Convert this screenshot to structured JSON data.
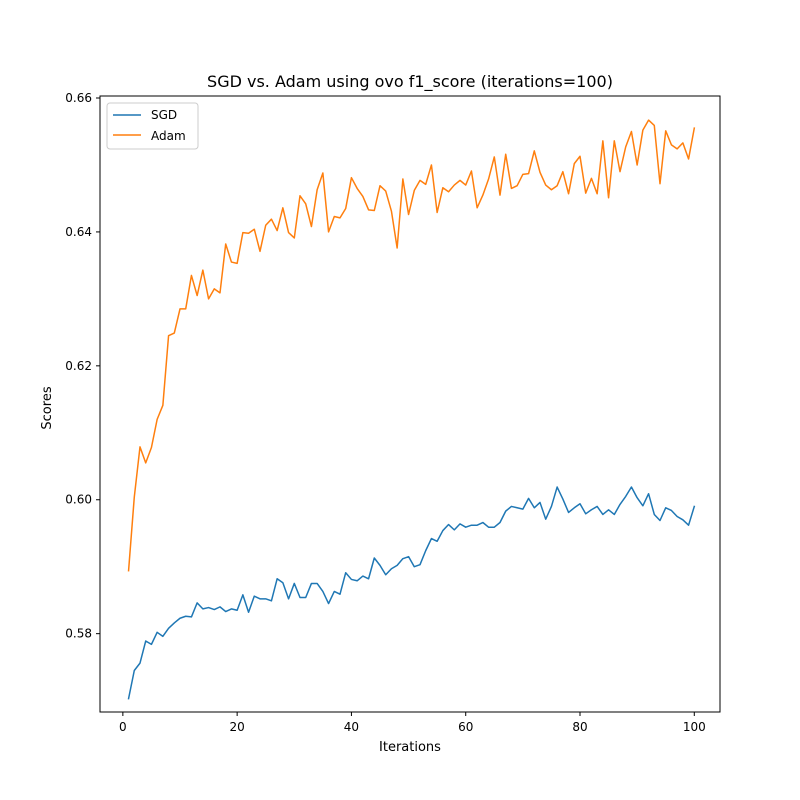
{
  "chart_data": {
    "type": "line",
    "title": "SGD vs. Adam using ovo f1_score (iterations=100)",
    "xlabel": "Iterations",
    "ylabel": "Scores",
    "xlim": [
      -4,
      104.5
    ],
    "ylim": [
      0.5683,
      0.6603
    ],
    "x_ticks": [
      0,
      20,
      40,
      60,
      80,
      100
    ],
    "y_ticks": [
      0.58,
      0.6,
      0.62,
      0.64,
      0.66
    ],
    "x_tick_labels": [
      "0",
      "20",
      "40",
      "60",
      "80",
      "100"
    ],
    "y_tick_labels": [
      "0.58",
      "0.60",
      "0.62",
      "0.64",
      "0.66"
    ],
    "grid": false,
    "legend": {
      "location": "upper-left",
      "entries": [
        "SGD",
        "Adam"
      ]
    },
    "x": [
      1,
      2,
      3,
      4,
      5,
      6,
      7,
      8,
      9,
      10,
      11,
      12,
      13,
      14,
      15,
      16,
      17,
      18,
      19,
      20,
      21,
      22,
      23,
      24,
      25,
      26,
      27,
      28,
      29,
      30,
      31,
      32,
      33,
      34,
      35,
      36,
      37,
      38,
      39,
      40,
      41,
      42,
      43,
      44,
      45,
      46,
      47,
      48,
      49,
      50,
      51,
      52,
      53,
      54,
      55,
      56,
      57,
      58,
      59,
      60,
      61,
      62,
      63,
      64,
      65,
      66,
      67,
      68,
      69,
      70,
      71,
      72,
      73,
      74,
      75,
      76,
      77,
      78,
      79,
      80,
      81,
      82,
      83,
      84,
      85,
      86,
      87,
      88,
      89,
      90,
      91,
      92,
      93,
      94,
      95,
      96,
      97,
      98,
      99,
      100
    ],
    "series": [
      {
        "name": "SGD",
        "color": "#1f77b4",
        "values": [
          0.5703,
          0.5745,
          0.5756,
          0.5789,
          0.5784,
          0.5802,
          0.5796,
          0.5808,
          0.5816,
          0.5823,
          0.5826,
          0.5825,
          0.5846,
          0.5837,
          0.5839,
          0.5836,
          0.584,
          0.5833,
          0.5837,
          0.5835,
          0.5858,
          0.5832,
          0.5856,
          0.5852,
          0.5852,
          0.5849,
          0.5882,
          0.5876,
          0.5852,
          0.5875,
          0.5854,
          0.5854,
          0.5875,
          0.5875,
          0.5863,
          0.5845,
          0.5863,
          0.5859,
          0.5891,
          0.5881,
          0.5879,
          0.5886,
          0.5882,
          0.5913,
          0.5902,
          0.5888,
          0.5897,
          0.5902,
          0.5912,
          0.5915,
          0.59,
          0.5903,
          0.5924,
          0.5942,
          0.5938,
          0.5954,
          0.5963,
          0.5955,
          0.5964,
          0.5959,
          0.5962,
          0.5962,
          0.5966,
          0.5959,
          0.5959,
          0.5966,
          0.5983,
          0.599,
          0.5988,
          0.5986,
          0.6002,
          0.5988,
          0.5996,
          0.5971,
          0.599,
          0.6019,
          0.6001,
          0.5981,
          0.5988,
          0.5994,
          0.5979,
          0.5985,
          0.599,
          0.5978,
          0.5985,
          0.5978,
          0.5993,
          0.6005,
          0.6019,
          0.6003,
          0.5991,
          0.6009,
          0.5978,
          0.5969,
          0.5988,
          0.5984,
          0.5975,
          0.597,
          0.5962,
          0.599
        ]
      },
      {
        "name": "Adam",
        "color": "#ff7f0e",
        "values": [
          0.5894,
          0.6004,
          0.6079,
          0.6055,
          0.6078,
          0.612,
          0.6141,
          0.6245,
          0.6249,
          0.6285,
          0.6285,
          0.6335,
          0.6305,
          0.6343,
          0.63,
          0.6315,
          0.6309,
          0.6382,
          0.6355,
          0.6353,
          0.6399,
          0.6398,
          0.6404,
          0.6371,
          0.641,
          0.6419,
          0.6402,
          0.6436,
          0.6399,
          0.6391,
          0.6454,
          0.6442,
          0.6408,
          0.6463,
          0.6488,
          0.64,
          0.6423,
          0.6421,
          0.6435,
          0.6481,
          0.6465,
          0.6453,
          0.6433,
          0.6432,
          0.6469,
          0.6461,
          0.6431,
          0.6376,
          0.6479,
          0.6426,
          0.6462,
          0.6477,
          0.6471,
          0.65,
          0.6429,
          0.6466,
          0.646,
          0.647,
          0.6477,
          0.647,
          0.6491,
          0.6436,
          0.6455,
          0.6479,
          0.6512,
          0.6455,
          0.6516,
          0.6465,
          0.6469,
          0.6486,
          0.6487,
          0.6521,
          0.6489,
          0.647,
          0.6463,
          0.6469,
          0.649,
          0.6457,
          0.6502,
          0.6513,
          0.6458,
          0.648,
          0.6457,
          0.6536,
          0.6451,
          0.6536,
          0.649,
          0.6527,
          0.655,
          0.65,
          0.6552,
          0.6567,
          0.6559,
          0.6472,
          0.6551,
          0.653,
          0.6524,
          0.6533,
          0.6509,
          0.6555
        ]
      }
    ]
  }
}
